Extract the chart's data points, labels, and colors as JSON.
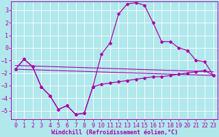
{
  "background_color": "#b0e8ec",
  "grid_color": "#d0f0f4",
  "line_color": "#aa00aa",
  "xlabel": "Windchill (Refroidissement éolien,°C)",
  "xlim": [
    -0.5,
    23.5
  ],
  "ylim": [
    -5.7,
    3.7
  ],
  "yticks": [
    -5,
    -4,
    -3,
    -2,
    -1,
    0,
    1,
    2,
    3
  ],
  "xticks": [
    0,
    1,
    2,
    3,
    4,
    5,
    6,
    7,
    8,
    9,
    10,
    11,
    12,
    13,
    14,
    15,
    16,
    17,
    18,
    19,
    20,
    21,
    22,
    23
  ],
  "x": [
    0,
    1,
    2,
    3,
    4,
    5,
    6,
    7,
    8,
    9,
    10,
    11,
    12,
    13,
    14,
    15,
    16,
    17,
    18,
    19,
    20,
    21,
    22,
    23
  ],
  "y_high": [
    -1.7,
    -0.9,
    -1.5,
    -3.1,
    -3.8,
    -4.9,
    -4.6,
    -5.3,
    -5.2,
    -3.1,
    -0.5,
    0.4,
    2.7,
    3.5,
    3.6,
    3.4,
    2.0,
    0.5,
    0.5,
    0.0,
    -0.2,
    -1.0,
    -1.1,
    -2.2
  ],
  "y_low": [
    -1.7,
    -0.9,
    -1.5,
    -3.1,
    -3.8,
    -4.9,
    -4.6,
    -5.3,
    -5.2,
    -3.1,
    -2.9,
    -2.8,
    -2.7,
    -2.6,
    -2.5,
    -2.4,
    -2.3,
    -2.3,
    -2.2,
    -2.1,
    -2.0,
    -1.9,
    -1.8,
    -2.2
  ],
  "trend1_x": [
    0,
    23
  ],
  "trend1_y": [
    -1.7,
    -2.2
  ],
  "trend2_x": [
    0,
    23
  ],
  "trend2_y": [
    -1.4,
    -1.9
  ],
  "tick_fontsize": 6,
  "xlabel_fontsize": 6
}
